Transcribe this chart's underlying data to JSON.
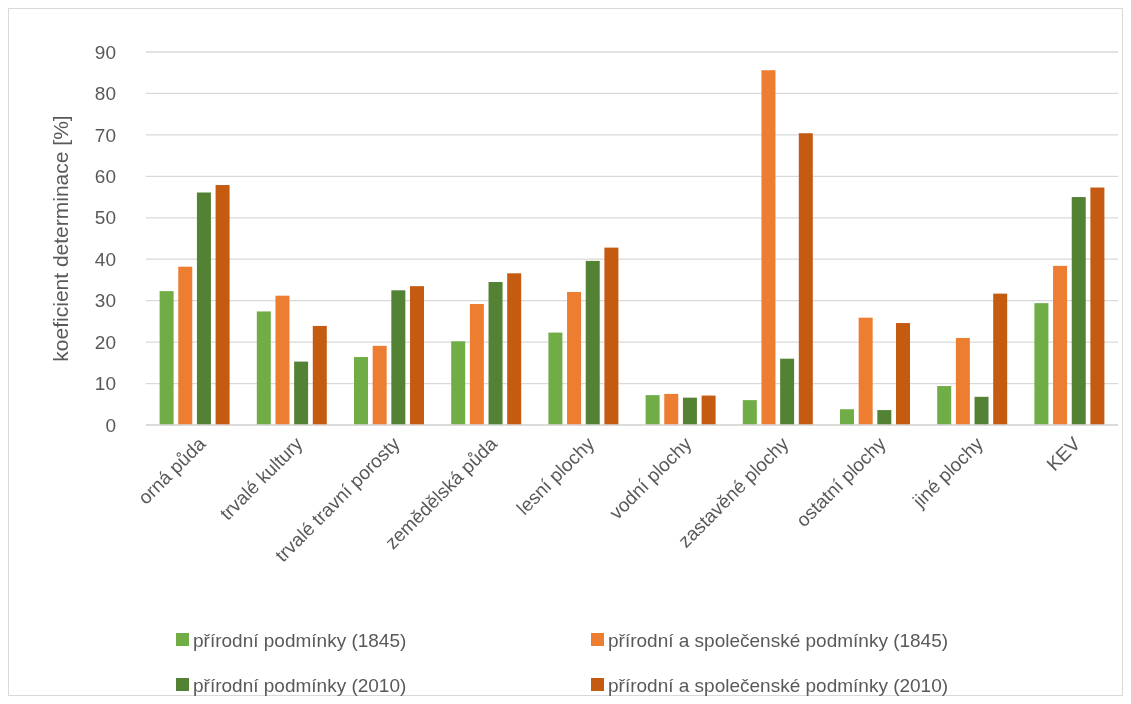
{
  "chart_data": {
    "type": "bar",
    "ylabel": "koeficient determinace [%]",
    "categories": [
      "orná půda",
      "trvalé kultury",
      "trvalé travní porosty",
      "zemědělská půda",
      "lesní  plochy",
      "vodní plochy",
      "zastavěné plochy",
      "ostatní plochy",
      "jiné plochy",
      "KEV"
    ],
    "series": [
      {
        "name": "přírodní podmínky (1845)",
        "color": "#70ad47",
        "values": [
          32.3,
          27.4,
          16.4,
          20.2,
          22.3,
          7.2,
          6.0,
          3.8,
          9.4,
          29.4
        ]
      },
      {
        "name": "přírodní a společenské podmínky (1845)",
        "color": "#ed7d31",
        "values": [
          38.2,
          31.2,
          19.1,
          29.2,
          32.1,
          7.5,
          85.6,
          25.9,
          21.0,
          38.4
        ]
      },
      {
        "name": "přírodní podmínky (2010)",
        "color": "#548235",
        "values": [
          56.1,
          15.3,
          32.5,
          34.5,
          39.6,
          6.6,
          16.0,
          3.6,
          6.8,
          55.0
        ]
      },
      {
        "name": "přírodní a společenské podmínky (2010)",
        "color": "#c55a11",
        "values": [
          57.9,
          23.9,
          33.5,
          36.6,
          42.8,
          7.1,
          70.4,
          24.6,
          31.7,
          57.3
        ]
      }
    ],
    "ylim": [
      0,
      90
    ],
    "yticks": [
      0,
      10,
      20,
      30,
      40,
      50,
      60,
      70,
      80,
      90
    ],
    "grid": "y",
    "legend": "bottom"
  }
}
